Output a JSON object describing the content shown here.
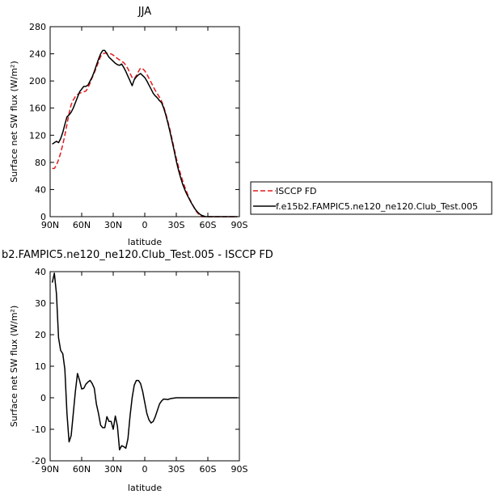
{
  "chart_data": [
    {
      "type": "line",
      "title": "JJA",
      "xlabel": "latitude",
      "ylabel": "Surface net SW flux (W/m²)",
      "xlim": [
        90,
        -90
      ],
      "ylim": [
        0,
        280
      ],
      "xticks": [
        "90N",
        "60N",
        "30N",
        "0",
        "30S",
        "60S",
        "90S"
      ],
      "xtick_values": [
        90,
        60,
        30,
        0,
        -30,
        -60,
        -90
      ],
      "yticks": [
        0,
        40,
        80,
        120,
        160,
        200,
        240,
        280
      ],
      "legend": "right",
      "series": [
        {
          "name": "ISCCP FD",
          "color": "#e41a1c",
          "dash": "dashed",
          "x": [
            88,
            86,
            84,
            82,
            80,
            78,
            76,
            74,
            72,
            70,
            68,
            66,
            64,
            62,
            60,
            58,
            56,
            54,
            52,
            50,
            48,
            46,
            44,
            42,
            40,
            38,
            36,
            34,
            32,
            30,
            28,
            26,
            24,
            22,
            20,
            18,
            16,
            14,
            12,
            10,
            8,
            6,
            4,
            2,
            0,
            -2,
            -4,
            -6,
            -8,
            -10,
            -12,
            -14,
            -16,
            -18,
            -20,
            -22,
            -24,
            -26,
            -28,
            -30,
            -32,
            -34,
            -36,
            -38,
            -40,
            -42,
            -44,
            -46,
            -48,
            -50,
            -52,
            -54,
            -56,
            -58,
            -60,
            -62,
            -64,
            -66,
            -68,
            -70,
            -72,
            -74,
            -76,
            -78,
            -80,
            -82,
            -84,
            -86,
            -88
          ],
          "y": [
            71,
            71,
            76,
            84,
            94,
            106,
            120,
            136,
            152,
            165,
            172,
            177,
            180,
            182,
            183,
            184,
            185,
            190,
            197,
            205,
            212,
            220,
            228,
            236,
            240,
            241,
            241,
            240,
            240,
            238,
            236,
            233,
            231,
            229,
            227,
            223,
            218,
            211,
            205,
            203,
            208,
            214,
            219,
            218,
            215,
            210,
            204,
            198,
            192,
            186,
            181,
            176,
            170,
            162,
            152,
            140,
            128,
            114,
            100,
            86,
            74,
            63,
            53,
            44,
            36,
            28,
            22,
            16,
            10,
            6,
            2,
            0,
            0,
            0,
            0,
            0,
            0,
            0,
            0,
            0,
            0,
            0,
            0,
            0,
            0,
            0,
            0,
            0,
            0
          ]
        },
        {
          "name": "f.e15b2.FAMPIC5.ne120_ne120.Club_Test.005",
          "color": "#000000",
          "dash": "solid",
          "x": [
            88,
            86,
            84,
            82,
            80,
            78,
            76,
            74,
            72,
            70,
            68,
            66,
            64,
            62,
            60,
            58,
            56,
            54,
            52,
            50,
            48,
            46,
            44,
            42,
            40,
            38,
            36,
            34,
            32,
            30,
            28,
            26,
            24,
            22,
            20,
            18,
            16,
            14,
            12,
            10,
            8,
            6,
            4,
            2,
            0,
            -2,
            -4,
            -6,
            -8,
            -10,
            -12,
            -14,
            -16,
            -18,
            -20,
            -22,
            -24,
            -26,
            -28,
            -30,
            -32,
            -34,
            -36,
            -38,
            -40,
            -42,
            -44,
            -46,
            -48,
            -50,
            -52,
            -54,
            -56,
            -58,
            -60,
            -62,
            -64,
            -66,
            -68,
            -70,
            -72,
            -74,
            -76,
            -78,
            -80,
            -82,
            -84,
            -86,
            -88
          ],
          "y": [
            107,
            109,
            111,
            109,
            115,
            124,
            136,
            147,
            150,
            154,
            160,
            168,
            176,
            184,
            188,
            192,
            192,
            194,
            200,
            206,
            214,
            223,
            232,
            240,
            245,
            245,
            240,
            235,
            232,
            229,
            226,
            224,
            223,
            225,
            220,
            214,
            207,
            200,
            193,
            202,
            206,
            209,
            211,
            208,
            205,
            200,
            194,
            188,
            182,
            178,
            175,
            171,
            168,
            160,
            150,
            138,
            125,
            111,
            97,
            82,
            69,
            58,
            48,
            40,
            33,
            27,
            21,
            16,
            11,
            7,
            4,
            2,
            1,
            0,
            0,
            0,
            0,
            0,
            0,
            0,
            0,
            0,
            0,
            0,
            0,
            0,
            0,
            0,
            0
          ]
        }
      ]
    },
    {
      "type": "line",
      "title": "b2.FAMPIC5.ne120_ne120.Club_Test.005 - ISCCP FD",
      "xlabel": "latitude",
      "ylabel": "Surface net SW flux (W/m²)",
      "xlim": [
        90,
        -90
      ],
      "ylim": [
        -20,
        40
      ],
      "xticks": [
        "90N",
        "60N",
        "30N",
        "0",
        "30S",
        "60S",
        "90S"
      ],
      "xtick_values": [
        90,
        60,
        30,
        0,
        -30,
        -60,
        -90
      ],
      "yticks": [
        -20,
        -10,
        0,
        10,
        20,
        30,
        40
      ],
      "series": [
        {
          "color": "#000000",
          "dash": "solid",
          "x": [
            88,
            86,
            84,
            82,
            80,
            78,
            76,
            74,
            72,
            70,
            68,
            66,
            64,
            62,
            60,
            58,
            56,
            54,
            52,
            50,
            48,
            46,
            44,
            42,
            40,
            38,
            36,
            34,
            32,
            30,
            28,
            26,
            24,
            22,
            20,
            18,
            16,
            14,
            12,
            10,
            8,
            6,
            4,
            2,
            0,
            -2,
            -4,
            -6,
            -8,
            -10,
            -12,
            -14,
            -16,
            -18,
            -20,
            -22,
            -24,
            -26,
            -28,
            -30,
            -32,
            -34,
            -36,
            -38,
            -40,
            -42,
            -44,
            -46,
            -48,
            -50,
            -52,
            -54,
            -56,
            -58,
            -60,
            -62,
            -64,
            -66,
            -68,
            -70,
            -72,
            -74,
            -76,
            -78,
            -80,
            -82,
            -84,
            -86,
            -88
          ],
          "y": [
            36.5,
            39.5,
            33,
            19,
            15,
            14,
            9,
            -5,
            -14,
            -12,
            -5,
            2,
            7.7,
            5.5,
            2.8,
            3,
            4.3,
            5,
            5.5,
            4.5,
            3,
            -2,
            -5,
            -8.7,
            -9.5,
            -9.5,
            -6,
            -7.5,
            -7.5,
            -10,
            -5.8,
            -9,
            -16.5,
            -15.2,
            -15.5,
            -16,
            -13,
            -5.8,
            0,
            4,
            5.5,
            5.5,
            4.5,
            2,
            -1.5,
            -5,
            -7,
            -8,
            -7.5,
            -6,
            -4,
            -2,
            -1,
            -0.4,
            -0.5,
            -0.6,
            -0.3,
            -0.2,
            -0.1,
            0,
            0,
            0,
            0,
            0,
            0,
            0,
            0,
            0,
            0,
            0,
            0,
            0,
            0,
            0,
            0,
            0,
            0,
            0,
            0,
            0,
            0,
            0,
            0,
            0,
            0,
            0,
            0,
            0,
            0
          ]
        }
      ]
    }
  ]
}
